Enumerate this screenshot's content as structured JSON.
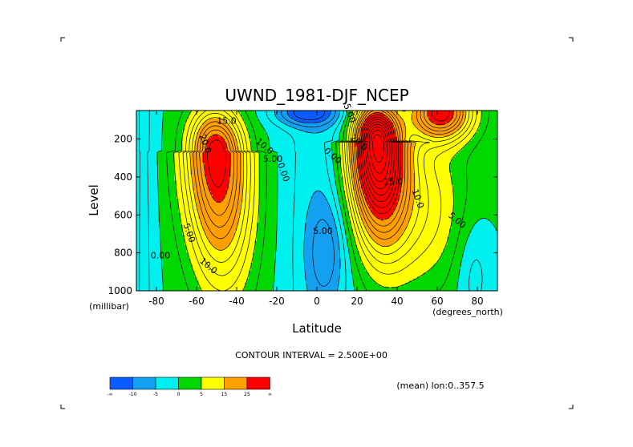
{
  "chart_data": {
    "type": "heatmap",
    "title": "UWND_1981-DJF_NCEP",
    "xlabel": "Latitude",
    "ylabel": "Level",
    "x_units": "(degrees_north)",
    "y_units": "(millibar)",
    "xlim": [
      -90,
      90
    ],
    "ylim": [
      1000,
      50
    ],
    "y_reversed": true,
    "x_ticks": [
      -80,
      -60,
      -40,
      -20,
      0,
      20,
      40,
      60,
      80
    ],
    "y_ticks": [
      200,
      400,
      600,
      800,
      1000
    ],
    "x_tick_labels": [
      "-80",
      "-60",
      "-40",
      "-20",
      "0",
      "20",
      "40",
      "60",
      "80"
    ],
    "y_tick_labels": [
      "200",
      "400",
      "600",
      "800",
      "1000"
    ],
    "contour_interval_label": "CONTOUR INTERVAL = 2.500E+00",
    "footnote": "(mean) lon:0..357.5",
    "contour_labels": [
      {
        "text": "0.00",
        "lat": -78,
        "lev": 830
      },
      {
        "text": "5.00",
        "lat": -65,
        "lev": 700
      },
      {
        "text": "10.0",
        "lat": -55,
        "lev": 880
      },
      {
        "text": "15.0",
        "lat": -45,
        "lev": 120
      },
      {
        "text": "20.0",
        "lat": -57,
        "lev": 230
      },
      {
        "text": "10.0",
        "lat": -27,
        "lev": 250
      },
      {
        "text": "5.00",
        "lat": -22,
        "lev": 320
      },
      {
        "text": "0.00",
        "lat": -18,
        "lev": 380
      },
      {
        "text": "0.00",
        "lat": 7,
        "lev": 300
      },
      {
        "text": "5.00",
        "lat": 3,
        "lev": 700
      },
      {
        "text": "5.00",
        "lat": 15,
        "lev": 70
      },
      {
        "text": "20.0",
        "lat": 20,
        "lev": 230
      },
      {
        "text": "15.0",
        "lat": 38,
        "lev": 440
      },
      {
        "text": "10.0",
        "lat": 49,
        "lev": 520
      },
      {
        "text": "5.00",
        "lat": 69,
        "lev": 640
      }
    ],
    "jets": [
      {
        "lat": -50,
        "lev": 270,
        "peak": 30
      },
      {
        "lat": 30,
        "lev": 210,
        "peak": 45
      },
      {
        "lat": 62,
        "lev": 60,
        "peak": 28
      }
    ],
    "easterlies": [
      {
        "lat": 5,
        "lev": 790,
        "min": -6
      },
      {
        "lat": -5,
        "lev": 60,
        "min": -12
      }
    ],
    "colorbar": {
      "levels": [
        "-∞",
        "-10",
        "-5",
        "0",
        "5",
        "15",
        "25",
        "∞"
      ],
      "colors": [
        "#0a5cff",
        "#14a0f0",
        "#00f0f0",
        "#00d800",
        "#ffff00",
        "#ffa000",
        "#ff0000"
      ]
    }
  }
}
